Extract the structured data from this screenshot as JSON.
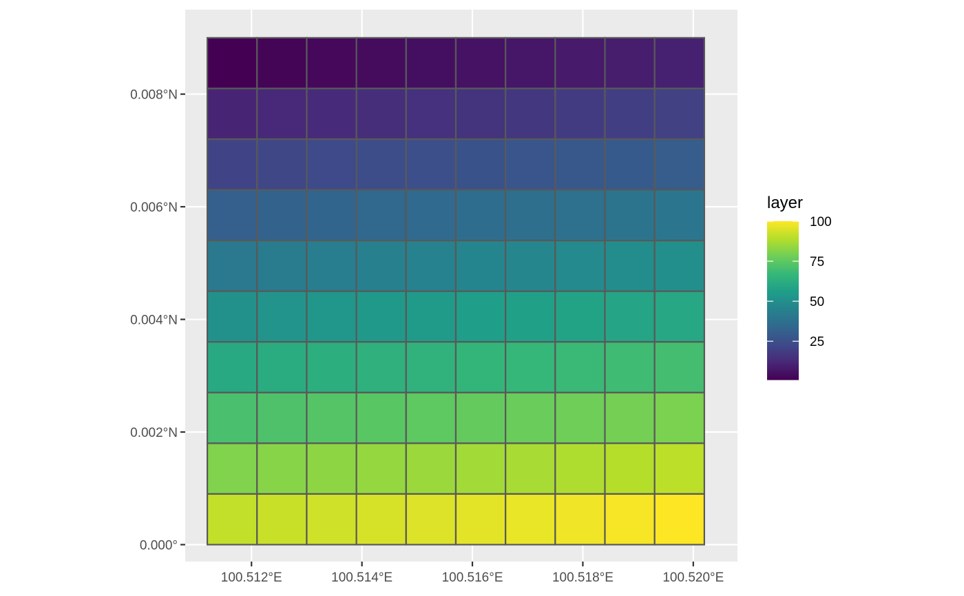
{
  "chart_data": {
    "type": "heatmap",
    "title": "",
    "xlabel": "",
    "ylabel": "",
    "x_ticks": [
      {
        "value": 100.512,
        "label": "100.512°E"
      },
      {
        "value": 100.514,
        "label": "100.514°E"
      },
      {
        "value": 100.516,
        "label": "100.516°E"
      },
      {
        "value": 100.518,
        "label": "100.518°E"
      },
      {
        "value": 100.52,
        "label": "100.520°E"
      }
    ],
    "y_ticks": [
      {
        "value": 0.0,
        "label": "0.000°"
      },
      {
        "value": 0.002,
        "label": "0.002°N"
      },
      {
        "value": 0.004,
        "label": "0.004°N"
      },
      {
        "value": 0.006,
        "label": "0.006°N"
      },
      {
        "value": 0.008,
        "label": "0.008°N"
      }
    ],
    "xlim": [
      100.5108,
      100.5208
    ],
    "ylim": [
      -0.0003,
      0.0095
    ],
    "grid": {
      "x_start": 100.5112,
      "x_end": 100.5202,
      "y_start": 0.0,
      "y_end": 0.009,
      "ncol": 10,
      "nrow": 10
    },
    "values": [
      [
        1,
        2,
        3,
        4,
        5,
        6,
        7,
        8,
        9,
        10
      ],
      [
        11,
        12,
        13,
        14,
        15,
        16,
        17,
        18,
        19,
        20
      ],
      [
        21,
        22,
        23,
        24,
        25,
        26,
        27,
        28,
        29,
        30
      ],
      [
        31,
        32,
        33,
        34,
        35,
        36,
        37,
        38,
        39,
        40
      ],
      [
        41,
        42,
        43,
        44,
        45,
        46,
        47,
        48,
        49,
        50
      ],
      [
        51,
        52,
        53,
        54,
        55,
        56,
        57,
        58,
        59,
        60
      ],
      [
        61,
        62,
        63,
        64,
        65,
        66,
        67,
        68,
        69,
        70
      ],
      [
        71,
        72,
        73,
        74,
        75,
        76,
        77,
        78,
        79,
        80
      ],
      [
        81,
        82,
        83,
        84,
        85,
        86,
        87,
        88,
        89,
        90
      ],
      [
        91,
        92,
        93,
        94,
        95,
        96,
        97,
        98,
        99,
        100
      ]
    ],
    "legend": {
      "title": "layer",
      "position": "right",
      "min": 1,
      "max": 100,
      "breaks": [
        {
          "value": 25,
          "label": "25"
        },
        {
          "value": 50,
          "label": "50"
        },
        {
          "value": 75,
          "label": "75"
        },
        {
          "value": 100,
          "label": "100"
        }
      ]
    },
    "colors": {
      "panel_background": "#ebebeb",
      "grid_line": "#ffffff",
      "cell_border": "#595959",
      "axis_tick": "#333333",
      "palette": [
        "#440154",
        "#482878",
        "#3e4a89",
        "#31688e",
        "#26828e",
        "#1f9e89",
        "#35b779",
        "#6ece58",
        "#b5de2b",
        "#fde725"
      ]
    }
  }
}
